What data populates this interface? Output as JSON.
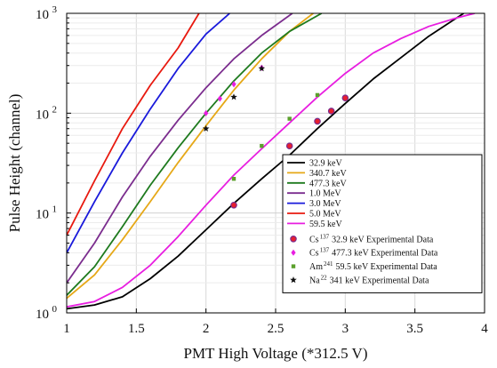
{
  "chart_data": {
    "type": "line",
    "xlabel": "PMT High Voltage (*312.5 V)",
    "ylabel": "Pulse Height (channel)",
    "xlim": [
      1,
      4
    ],
    "ylim": [
      1,
      1000
    ],
    "yscale": "log",
    "grid": true,
    "legend_placement": "bottom-right",
    "x_ticks": [
      "1",
      "1.5",
      "2",
      "2.5",
      "3",
      "3.5",
      "4"
    ],
    "y_ticks": [
      {
        "base": "10",
        "exp": "0"
      },
      {
        "base": "10",
        "exp": "1"
      },
      {
        "base": "10",
        "exp": "2"
      },
      {
        "base": "10",
        "exp": "3"
      }
    ],
    "series": [
      {
        "name": "32.9 keV",
        "color": "#000000",
        "x": [
          1.0,
          1.2,
          1.4,
          1.6,
          1.8,
          2.0,
          2.2,
          2.4,
          2.6,
          2.8,
          3.0,
          3.2,
          3.4,
          3.6,
          3.85
        ],
        "y": [
          1.1,
          1.2,
          1.45,
          2.2,
          3.7,
          6.8,
          12.5,
          22,
          38,
          70,
          125,
          220,
          360,
          590,
          1000
        ]
      },
      {
        "name": "340.7 keV",
        "color": "#E6A817",
        "x": [
          1.0,
          1.2,
          1.4,
          1.6,
          1.8,
          2.0,
          2.2,
          2.4,
          2.6,
          2.77
        ],
        "y": [
          1.4,
          2.4,
          5.4,
          13,
          32,
          75,
          170,
          350,
          660,
          1000
        ]
      },
      {
        "name": "477.3 keV",
        "color": "#1E7A1E",
        "x": [
          1.0,
          1.2,
          1.4,
          1.6,
          1.8,
          2.0,
          2.2,
          2.4,
          2.6,
          2.83
        ],
        "y": [
          1.5,
          2.9,
          7.3,
          19,
          45,
          100,
          210,
          400,
          660,
          1000
        ]
      },
      {
        "name": "1.0 MeV",
        "color": "#7B2D8E",
        "x": [
          1.0,
          1.2,
          1.4,
          1.6,
          1.8,
          2.0,
          2.2,
          2.4,
          2.62
        ],
        "y": [
          2.0,
          5.0,
          14.5,
          37,
          85,
          180,
          350,
          600,
          1000
        ]
      },
      {
        "name": "3.0 MeV",
        "color": "#1A1ADB",
        "x": [
          1.0,
          1.2,
          1.4,
          1.6,
          1.8,
          2.0,
          2.17
        ],
        "y": [
          4.0,
          13,
          40,
          110,
          280,
          620,
          1000
        ]
      },
      {
        "name": "5.0 MeV",
        "color": "#E8190F",
        "x": [
          1.0,
          1.2,
          1.4,
          1.6,
          1.8,
          1.95
        ],
        "y": [
          6.0,
          21,
          70,
          190,
          450,
          1000
        ]
      },
      {
        "name": "59.5 keV",
        "color": "#E81EE0",
        "x": [
          1.0,
          1.2,
          1.4,
          1.6,
          1.8,
          2.0,
          2.2,
          2.4,
          2.6,
          2.8,
          3.0,
          3.2,
          3.4,
          3.6,
          3.8,
          3.93
        ],
        "y": [
          1.15,
          1.3,
          1.8,
          3.0,
          5.8,
          12,
          24,
          44,
          80,
          145,
          250,
          400,
          560,
          740,
          900,
          1000
        ]
      }
    ],
    "scatter": [
      {
        "name": "Cs 137 32.9 keV Experimental Data",
        "label_main": "Cs",
        "label_sup": "137",
        "label_rest": "32.9 keV Experimental Data",
        "marker": "circle",
        "color": "#E81F2E",
        "edge": "#7B2D8E",
        "x": [
          2.2,
          2.6,
          2.8,
          2.9,
          3.0
        ],
        "y": [
          12,
          47,
          83,
          105,
          142
        ]
      },
      {
        "name": "Cs 137 477.3 keV Experimental Data",
        "label_main": "Cs",
        "label_sup": "137",
        "label_rest": "477.3 keV Experimental Data",
        "marker": "diamond",
        "color": "#E81EE0",
        "x": [
          2.0,
          2.1,
          2.2,
          2.4
        ],
        "y": [
          100,
          140,
          195,
          285
        ]
      },
      {
        "name": "Am 241 59.5 keV Experimental Data",
        "label_main": "Am",
        "label_sup": "241",
        "label_rest": "59.5 keV Experimental Data",
        "marker": "square",
        "color": "#5BA02C",
        "x": [
          2.2,
          2.4,
          2.6,
          2.8
        ],
        "y": [
          22,
          47,
          88,
          152
        ]
      },
      {
        "name": "Na 22 341 keV Experimental Data",
        "label_main": "Na",
        "label_sup": "22",
        "label_rest": "341 keV Experimental Data",
        "marker": "star",
        "color": "#111111",
        "x": [
          2.0,
          2.2,
          2.4
        ],
        "y": [
          70,
          145,
          280
        ]
      }
    ]
  }
}
